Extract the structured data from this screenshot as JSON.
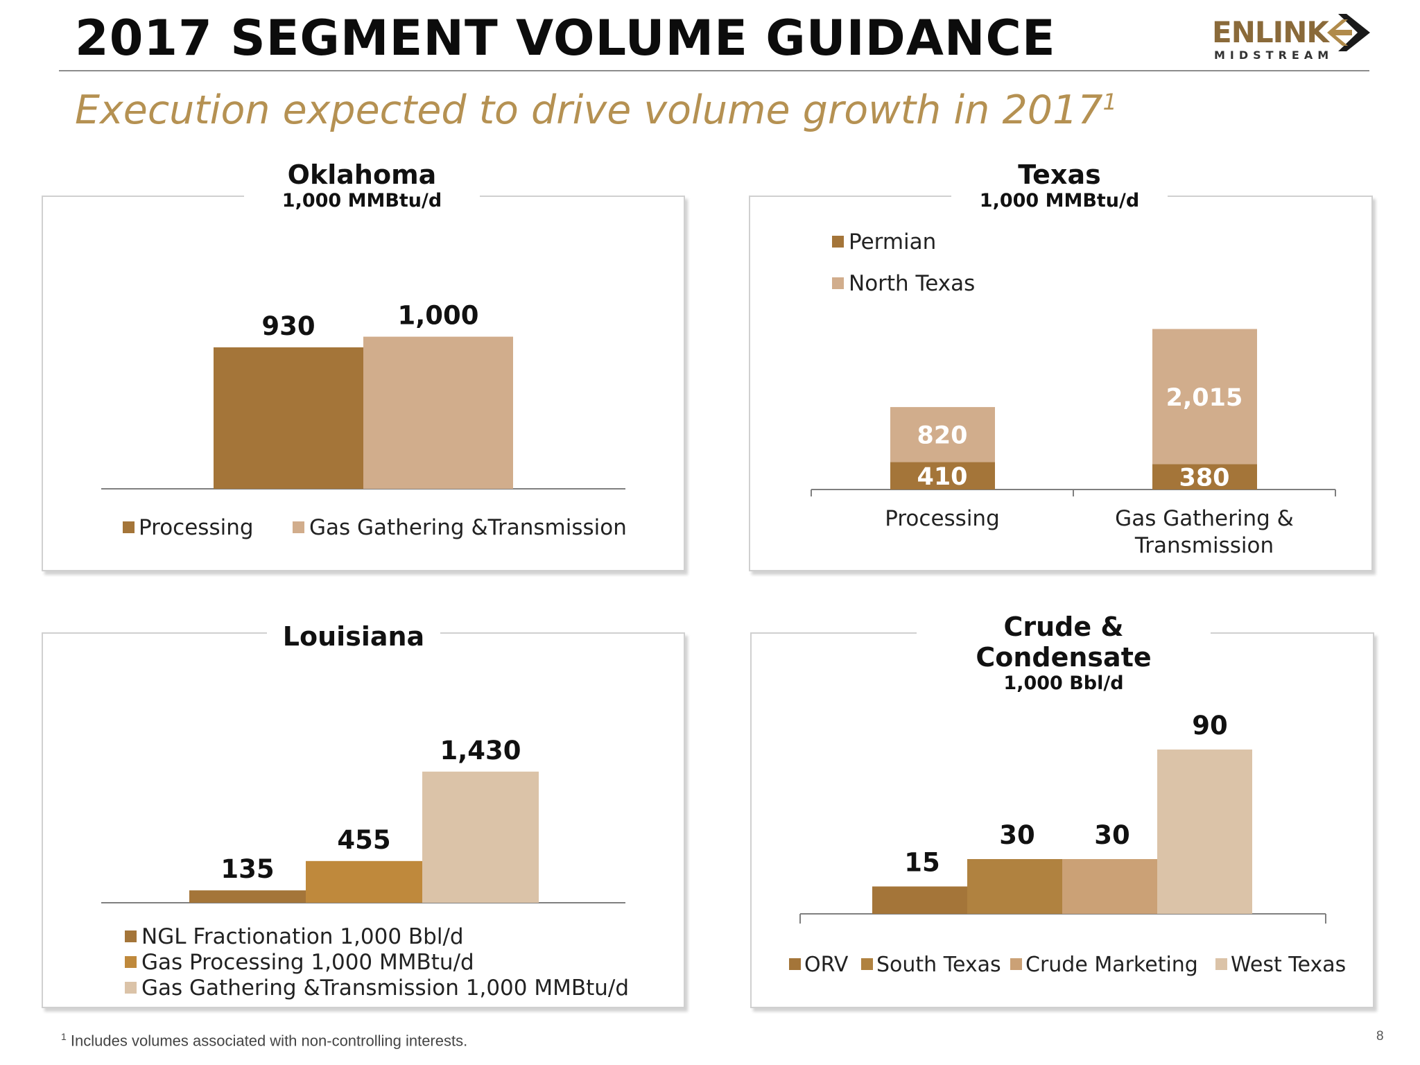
{
  "header": {
    "title": "2017 SEGMENT VOLUME GUIDANCE",
    "subtitle": "Execution expected to drive volume growth in 2017",
    "subtitle_sup": "1",
    "logo_word": "ENLINK",
    "logo_sub": "MIDSTREAM"
  },
  "colors": {
    "dark_brown": "#a47539",
    "light_tan": "#d1ad8c",
    "golden": "#bf893c",
    "pale_tan": "#dbc3a8",
    "muted_tan": "#cba176",
    "accent": "#b59152"
  },
  "chart_data": [
    {
      "id": "oklahoma",
      "type": "bar",
      "title": "Oklahoma",
      "subtitle": "1,000 MMBtu/d",
      "categories": [
        ""
      ],
      "series": [
        {
          "name": "Processing",
          "values": [
            930
          ],
          "labels": [
            "930"
          ],
          "color": "#a47539"
        },
        {
          "name": "Gas Gathering &Transmission",
          "values": [
            1000
          ],
          "labels": [
            "1,000"
          ],
          "color": "#d1ad8c"
        }
      ],
      "ylim": [
        0,
        1700
      ],
      "legend": "bottom"
    },
    {
      "id": "texas",
      "type": "bar",
      "stacked": true,
      "title": "Texas",
      "subtitle": "1,000 MMBtu/d",
      "categories": [
        "Processing",
        "Gas Gathering & Transmission"
      ],
      "category_lines": [
        [
          "Processing"
        ],
        [
          "Gas Gathering &",
          "Transmission"
        ]
      ],
      "series": [
        {
          "name": "Permian",
          "values": [
            410,
            380
          ],
          "labels": [
            "410",
            "380"
          ],
          "color": "#a47539"
        },
        {
          "name": "North Texas",
          "values": [
            820,
            2015
          ],
          "labels": [
            "820",
            "2,015"
          ],
          "color": "#d1ad8c"
        }
      ],
      "ylim": [
        0,
        3000
      ],
      "legend": "top-left"
    },
    {
      "id": "louisiana",
      "type": "bar",
      "title": "Louisiana",
      "subtitle": "",
      "categories": [
        ""
      ],
      "series": [
        {
          "name": "NGL Fractionation 1,000 Bbl/d",
          "values": [
            135
          ],
          "labels": [
            "135"
          ],
          "color": "#a47539"
        },
        {
          "name": "Gas Processing 1,000 MMBtu/d",
          "values": [
            455
          ],
          "labels": [
            "455"
          ],
          "color": "#bf893c"
        },
        {
          "name": "Gas Gathering &Transmission 1,000 MMBtu/d",
          "values": [
            1430
          ],
          "labels": [
            "1,430"
          ],
          "color": "#dbc3a8"
        }
      ],
      "ylim": [
        0,
        2200
      ],
      "legend": "bottom"
    },
    {
      "id": "crude",
      "type": "bar",
      "title": "Crude & Condensate",
      "subtitle": "1,000 Bbl/d",
      "categories": [
        ""
      ],
      "series": [
        {
          "name": "ORV",
          "values": [
            15
          ],
          "labels": [
            "15"
          ],
          "color": "#a47539"
        },
        {
          "name": "South Texas",
          "values": [
            30
          ],
          "labels": [
            "30"
          ],
          "color": "#b08240"
        },
        {
          "name": "Crude Marketing",
          "values": [
            30
          ],
          "labels": [
            "30"
          ],
          "color": "#cba176"
        },
        {
          "name": "West Texas",
          "values": [
            90
          ],
          "labels": [
            "90"
          ],
          "color": "#dbc3a8"
        }
      ],
      "ylim": [
        0,
        120
      ],
      "legend": "bottom"
    }
  ],
  "footer": {
    "footnote_sup": "1",
    "footnote": "Includes volumes associated with non-controlling interests.",
    "page_number": "8"
  }
}
